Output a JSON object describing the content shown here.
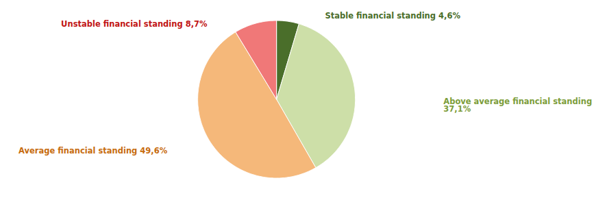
{
  "chart_data": {
    "type": "pie",
    "categories": [
      "Stable financial standing 4,6%",
      "Above average financial standing\n37,1%",
      "Average financial standing 49,6%",
      "Unstable financial standing 8,7%"
    ],
    "values": [
      4.6,
      37.1,
      49.6,
      8.7
    ],
    "colors": [
      "#4a6e2a",
      "#cddfa8",
      "#f5b87a",
      "#f07878"
    ]
  }
}
